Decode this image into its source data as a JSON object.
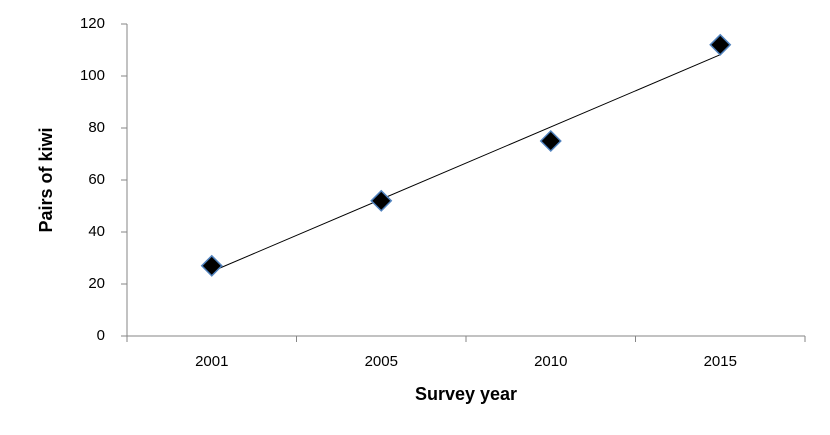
{
  "chart_data": {
    "type": "line",
    "x_label": "Survey year",
    "y_label": "Pairs of kiwi",
    "categories": [
      "2001",
      "2005",
      "2010",
      "2015"
    ],
    "values": [
      27,
      52,
      75,
      112
    ],
    "marker": "diamond",
    "marker_color": "#000000",
    "marker_edge_color": "#4f81bd",
    "line": false,
    "trendline": "linear",
    "trendline_color": "#000000",
    "ylim": [
      0,
      120
    ],
    "yticks": [
      0,
      20,
      40,
      60,
      80,
      100,
      120
    ],
    "grid": false
  }
}
